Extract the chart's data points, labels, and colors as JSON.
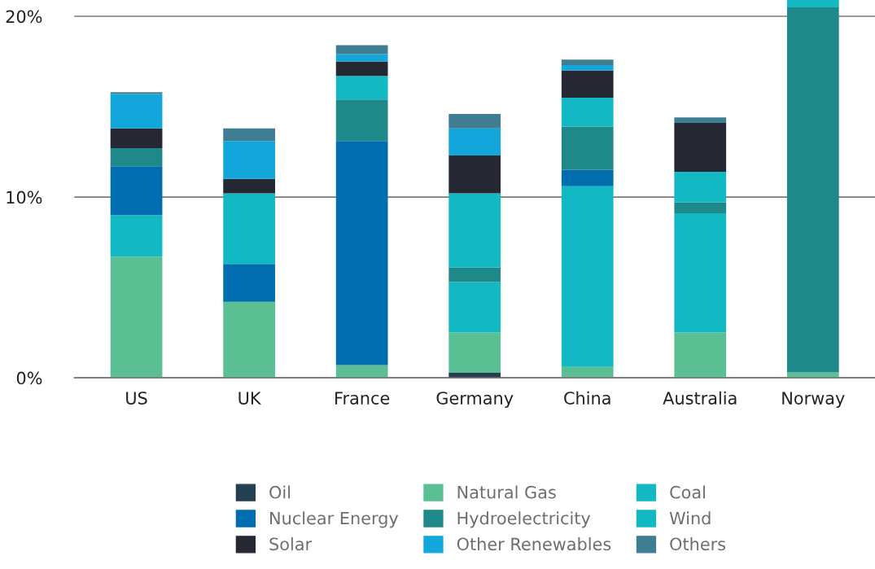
{
  "chart_data": {
    "type": "bar",
    "stacked": true,
    "categories": [
      "US",
      "UK",
      "France",
      "Germany",
      "China",
      "Australia",
      "Norway"
    ],
    "ylim": [
      0,
      20.9
    ],
    "yticks": [
      {
        "value": 0,
        "label": "0%"
      },
      {
        "value": 10,
        "label": "10%"
      },
      {
        "value": 20,
        "label": "20%"
      }
    ],
    "grid": "y",
    "legend": "bottom",
    "series": [
      {
        "name": "Oil",
        "color": "#233f52",
        "values": [
          0,
          0,
          0,
          0.3,
          0,
          0,
          0
        ]
      },
      {
        "name": "Natural Gas",
        "color": "#5bbf94",
        "values": [
          6.7,
          4.2,
          0.7,
          2.2,
          0.6,
          2.5,
          0.3
        ]
      },
      {
        "name": "Coal",
        "color": "#12b8c2",
        "values": [
          2.3,
          0,
          0,
          2.8,
          10.0,
          6.6,
          0
        ]
      },
      {
        "name": "Nuclear Energy",
        "color": "#006eae",
        "values": [
          2.7,
          2.1,
          12.4,
          0,
          0.9,
          0,
          0
        ]
      },
      {
        "name": "Hydroelectricity",
        "color": "#1f8888",
        "values": [
          1.0,
          0,
          2.3,
          0.8,
          2.4,
          0.6,
          20.2
        ]
      },
      {
        "name": "Wind",
        "color": "#12b8c2",
        "values": [
          0,
          3.9,
          1.3,
          4.1,
          1.6,
          1.7,
          0.4
        ]
      },
      {
        "name": "Solar",
        "color": "#252833",
        "values": [
          1.1,
          0.8,
          0.8,
          2.1,
          1.5,
          2.7,
          0
        ]
      },
      {
        "name": "Other Renewables",
        "color": "#12a6da",
        "values": [
          1.9,
          2.1,
          0.4,
          1.5,
          0.3,
          0,
          0
        ]
      },
      {
        "name": "Others",
        "color": "#3e7d92",
        "values": [
          0.1,
          0.7,
          0.5,
          0.8,
          0.3,
          0.3,
          0
        ]
      }
    ]
  }
}
